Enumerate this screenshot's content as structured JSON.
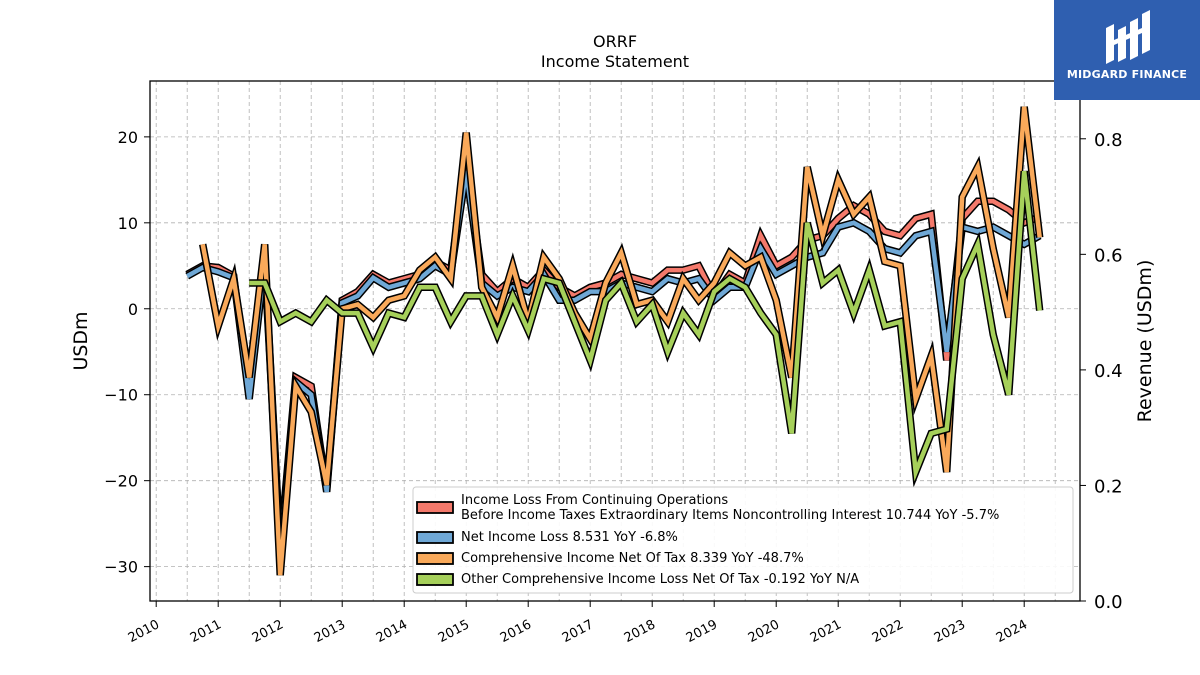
{
  "chart_data": {
    "type": "line",
    "title": "ORRF",
    "subtitle": "Income Statement",
    "ylabel": "USDm",
    "ylabel_right": "Revenue (USDm)",
    "ylim": [
      -34,
      26.5
    ],
    "ylim_right": [
      0,
      0.9
    ],
    "xlim": [
      2009.9,
      2024.9
    ],
    "yticks": [
      -30,
      -20,
      -10,
      0,
      10,
      20
    ],
    "yticks_right": [
      0.0,
      0.2,
      0.4,
      0.6,
      0.8
    ],
    "xticks": [
      2010,
      2011,
      2012,
      2013,
      2014,
      2015,
      2016,
      2017,
      2018,
      2019,
      2020,
      2021,
      2022,
      2023,
      2024
    ],
    "grid": true,
    "legend_position": "lower-right",
    "series": [
      {
        "name": "Income Loss From Continuing Operations\nBefore Income Taxes Extraordinary Items Noncontrolling Interest  10.744 YoY -5.7%",
        "color": "#f4796b",
        "x": [
          2010.5,
          2010.75,
          2011.0,
          2011.25,
          2011.5,
          2011.75,
          2012.0,
          2012.25,
          2012.5,
          2012.75,
          2013.0,
          2013.25,
          2013.5,
          2013.75,
          2014.0,
          2014.25,
          2014.5,
          2014.75,
          2015.0,
          2015.25,
          2015.5,
          2015.75,
          2016.0,
          2016.25,
          2016.5,
          2016.75,
          2017.0,
          2017.25,
          2017.5,
          2017.75,
          2018.0,
          2018.25,
          2018.5,
          2018.75,
          2019.0,
          2019.25,
          2019.5,
          2019.75,
          2020.0,
          2020.25,
          2020.5,
          2020.75,
          2021.0,
          2021.25,
          2021.5,
          2021.75,
          2022.0,
          2022.25,
          2022.5,
          2022.75,
          2023.0,
          2023.25,
          2023.5,
          2023.75,
          2024.0,
          2024.25
        ],
        "values": [
          4.0,
          5.0,
          4.8,
          3.8,
          -10.0,
          6.0,
          -28.0,
          -8.0,
          -9.0,
          -21.0,
          1.0,
          2.0,
          4.0,
          3.0,
          3.5,
          4.0,
          5.5,
          4.5,
          17.0,
          4.0,
          2.0,
          3.5,
          2.5,
          4.5,
          2.5,
          1.5,
          2.5,
          3.0,
          4.0,
          3.5,
          3.0,
          4.5,
          4.5,
          5.0,
          1.5,
          4.0,
          3.0,
          8.5,
          5.0,
          6.0,
          8.0,
          8.5,
          10.5,
          12.0,
          11.0,
          9.0,
          8.5,
          10.5,
          11.0,
          -6.0,
          10.5,
          12.5,
          12.5,
          11.5,
          10.0,
          10.7
        ]
      },
      {
        "name": "Net Income Loss  8.531 YoY -6.8%",
        "color": "#6fa8d6",
        "x": [
          2010.5,
          2010.75,
          2011.0,
          2011.25,
          2011.5,
          2011.75,
          2012.0,
          2012.25,
          2012.5,
          2012.75,
          2013.0,
          2013.25,
          2013.5,
          2013.75,
          2014.0,
          2014.25,
          2014.5,
          2014.75,
          2015.0,
          2015.25,
          2015.5,
          2015.75,
          2016.0,
          2016.25,
          2016.5,
          2016.75,
          2017.0,
          2017.25,
          2017.5,
          2017.75,
          2018.0,
          2018.25,
          2018.5,
          2018.75,
          2019.0,
          2019.25,
          2019.5,
          2019.75,
          2020.0,
          2020.25,
          2020.5,
          2020.75,
          2021.0,
          2021.25,
          2021.5,
          2021.75,
          2022.0,
          2022.25,
          2022.5,
          2022.75,
          2023.0,
          2023.25,
          2023.5,
          2023.75,
          2024.0,
          2024.25
        ],
        "values": [
          3.8,
          4.8,
          4.3,
          3.6,
          -10.5,
          5.5,
          -28.5,
          -8.5,
          -10.0,
          -21.3,
          0.7,
          1.5,
          3.6,
          2.5,
          3.0,
          3.5,
          5.0,
          4.0,
          16.0,
          3.0,
          1.5,
          2.5,
          2.0,
          4.0,
          1.0,
          1.0,
          2.0,
          2.0,
          3.0,
          2.5,
          2.0,
          3.5,
          3.0,
          3.5,
          1.0,
          2.5,
          2.5,
          7.0,
          4.0,
          5.0,
          6.0,
          6.5,
          9.5,
          10.0,
          9.0,
          7.0,
          6.5,
          8.5,
          9.0,
          -5.0,
          9.5,
          9.0,
          9.5,
          8.5,
          7.5,
          8.5
        ]
      },
      {
        "name": "Comprehensive Income Net Of Tax  8.339 YoY -48.7%",
        "color": "#f9a95a",
        "x": [
          2010.75,
          2011.0,
          2011.25,
          2011.5,
          2011.75,
          2012.0,
          2012.25,
          2012.5,
          2012.75,
          2013.0,
          2013.25,
          2013.5,
          2013.75,
          2014.0,
          2014.25,
          2014.5,
          2014.75,
          2015.0,
          2015.25,
          2015.5,
          2015.75,
          2016.0,
          2016.25,
          2016.5,
          2016.75,
          2017.0,
          2017.25,
          2017.5,
          2017.75,
          2018.0,
          2018.25,
          2018.5,
          2018.75,
          2019.0,
          2019.25,
          2019.5,
          2019.75,
          2020.0,
          2020.25,
          2020.5,
          2020.75,
          2021.0,
          2021.25,
          2021.5,
          2021.75,
          2022.0,
          2022.25,
          2022.5,
          2022.75,
          2023.0,
          2023.25,
          2023.5,
          2023.75,
          2024.0,
          2024.25
        ],
        "values": [
          7.5,
          -2.0,
          3.5,
          -8.0,
          7.5,
          -31.0,
          -9.0,
          -12.0,
          -20.5,
          0.0,
          0.5,
          -1.0,
          1.0,
          1.5,
          4.5,
          6.0,
          3.5,
          20.5,
          2.5,
          -1.0,
          5.0,
          -1.5,
          6.0,
          3.5,
          -0.5,
          -3.5,
          3.0,
          6.5,
          0.5,
          1.0,
          -1.5,
          3.5,
          1.0,
          3.0,
          6.5,
          5.0,
          6.0,
          1.0,
          -8.0,
          16.5,
          8.5,
          15.0,
          11.0,
          13.0,
          5.5,
          5.0,
          -10.5,
          -5.5,
          -19.0,
          13.0,
          16.5,
          7.0,
          -1.0,
          23.5,
          8.3
        ]
      },
      {
        "name": "Other Comprehensive Income Loss Net Of Tax  -0.192 YoY N/A",
        "color": "#a6d05a",
        "x": [
          2011.5,
          2011.75,
          2012.0,
          2012.25,
          2012.5,
          2012.75,
          2013.0,
          2013.25,
          2013.5,
          2013.75,
          2014.0,
          2014.25,
          2014.5,
          2014.75,
          2015.0,
          2015.25,
          2015.5,
          2015.75,
          2016.0,
          2016.25,
          2016.5,
          2016.75,
          2017.0,
          2017.25,
          2017.5,
          2017.75,
          2018.0,
          2018.25,
          2018.5,
          2018.75,
          2019.0,
          2019.25,
          2019.5,
          2019.75,
          2020.0,
          2020.25,
          2020.5,
          2020.75,
          2021.0,
          2021.25,
          2021.5,
          2021.75,
          2022.0,
          2022.25,
          2022.5,
          2022.75,
          2023.0,
          2023.25,
          2023.5,
          2023.75,
          2024.0,
          2024.25
        ],
        "values": [
          3.0,
          3.0,
          -1.5,
          -0.5,
          -1.5,
          1.0,
          -0.5,
          -0.5,
          -4.5,
          -0.5,
          -1.0,
          2.5,
          2.5,
          -1.5,
          1.5,
          1.5,
          -3.0,
          1.5,
          -2.5,
          3.5,
          3.0,
          -1.5,
          -6.0,
          1.0,
          3.0,
          -1.5,
          0.5,
          -5.0,
          -0.5,
          -3.0,
          2.0,
          3.5,
          2.5,
          -0.5,
          -3.0,
          -14.5,
          10.0,
          3.0,
          4.5,
          -0.5,
          4.5,
          -2.0,
          -1.5,
          -19.0,
          -14.5,
          -14.0,
          3.5,
          7.5,
          -3.0,
          -10.0,
          16.0,
          -0.2
        ]
      }
    ]
  },
  "brand": {
    "name": "MIDGARD FINANCE",
    "icon": "midgard-logo-icon",
    "color": "#2f5fb0"
  }
}
